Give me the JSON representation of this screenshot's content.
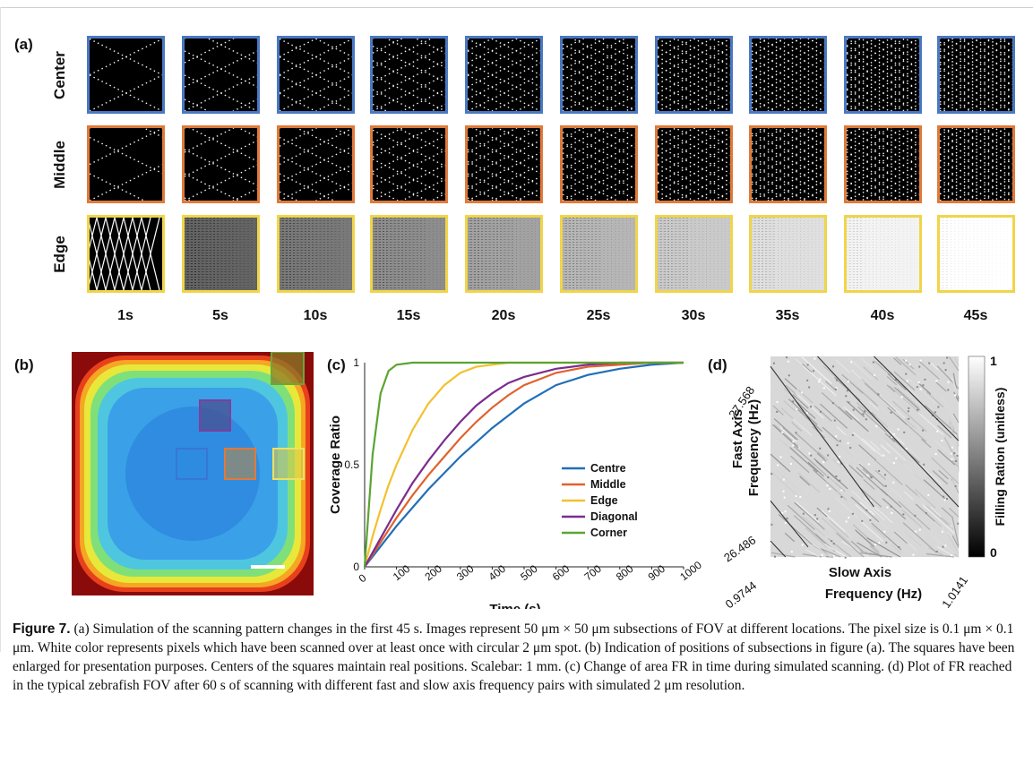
{
  "panel_a": {
    "label": "(a)",
    "rows": [
      {
        "label": "Center",
        "color": "#4a78c2"
      },
      {
        "label": "Middle",
        "color": "#e07a3a"
      },
      {
        "label": "Edge",
        "color": "#f0d54a"
      }
    ],
    "times": [
      "1s",
      "5s",
      "10s",
      "15s",
      "20s",
      "25s",
      "30s",
      "35s",
      "40s",
      "45s"
    ]
  },
  "panel_b": {
    "label": "(b)"
  },
  "panel_c": {
    "label": "(c)",
    "chart_data": {
      "type": "line",
      "xlabel": "Time (s)",
      "ylabel": "Coverage Ratio",
      "xlim": [
        0,
        1000
      ],
      "ylim": [
        0,
        1
      ],
      "xticks": [
        "0",
        "100",
        "200",
        "300",
        "400",
        "500",
        "600",
        "700",
        "800",
        "900",
        "1000"
      ],
      "yticks": [
        "0",
        "0.5",
        "1"
      ],
      "x": [
        0,
        25,
        50,
        75,
        100,
        150,
        200,
        250,
        300,
        350,
        400,
        450,
        500,
        600,
        700,
        800,
        900,
        1000
      ],
      "series": [
        {
          "name": "Centre",
          "color": "#1f6fb8",
          "values": [
            0,
            0.05,
            0.1,
            0.15,
            0.2,
            0.29,
            0.38,
            0.46,
            0.54,
            0.61,
            0.68,
            0.74,
            0.8,
            0.89,
            0.94,
            0.97,
            0.99,
            1.0
          ]
        },
        {
          "name": "Middle",
          "color": "#e0622c",
          "values": [
            0,
            0.06,
            0.12,
            0.18,
            0.24,
            0.35,
            0.45,
            0.54,
            0.63,
            0.71,
            0.78,
            0.84,
            0.89,
            0.95,
            0.98,
            0.99,
            1.0,
            1.0
          ]
        },
        {
          "name": "Edge",
          "color": "#f2c12e",
          "values": [
            0,
            0.15,
            0.28,
            0.4,
            0.5,
            0.67,
            0.8,
            0.89,
            0.95,
            0.98,
            0.99,
            1.0,
            1.0,
            1.0,
            1.0,
            1.0,
            1.0,
            1.0
          ]
        },
        {
          "name": "Diagonal",
          "color": "#7b2d8e",
          "values": [
            0,
            0.07,
            0.14,
            0.21,
            0.28,
            0.41,
            0.52,
            0.62,
            0.71,
            0.79,
            0.85,
            0.9,
            0.93,
            0.97,
            0.99,
            1.0,
            1.0,
            1.0
          ]
        },
        {
          "name": "Corner",
          "color": "#5aa532",
          "values": [
            0,
            0.55,
            0.85,
            0.96,
            0.99,
            1.0,
            1.0,
            1.0,
            1.0,
            1.0,
            1.0,
            1.0,
            1.0,
            1.0,
            1.0,
            1.0,
            1.0,
            1.0
          ]
        }
      ]
    }
  },
  "panel_d": {
    "label": "(d)",
    "y_axis_label_1": "Fast Axis",
    "y_axis_label_2": "Frequency (Hz)",
    "y_top": "27.568",
    "y_bottom": "26.486",
    "x_axis_label_1": "Slow Axis",
    "x_axis_label_2": "Frequency (Hz)",
    "x_left": "0.9744",
    "x_right": "1.0141",
    "colorbar_label": "Filling Ration (unitless)",
    "colorbar_max": "1",
    "colorbar_min": "0"
  },
  "caption": {
    "figure": "Figure 7.",
    "text": "(a) Simulation of the scanning pattern changes in the first 45 s. Images represent 50 μm × 50 μm subsections of FOV at different locations. The pixel size is 0.1 μm × 0.1 μm. White color represents pixels which have been scanned over at least once with circular 2 μm spot. (b) Indication of positions of subsections in figure (a). The squares have been enlarged for presentation purposes. Centers of the squares maintain real positions. Scalebar: 1 mm. (c) Change of area FR in time during simulated scanning. (d) Plot of FR reached in the typical zebrafish FOV after 60 s of scanning with different fast and slow axis frequency pairs with simulated 2 μm resolution."
  }
}
